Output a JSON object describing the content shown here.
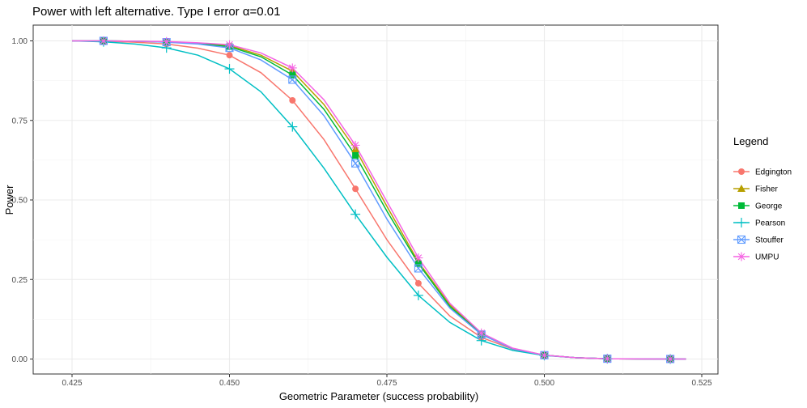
{
  "chart_data": {
    "type": "line",
    "title": "Power with left alternative. Type I error α=0.01",
    "xlabel": "Geometric Parameter (success probability)",
    "ylabel": "Power",
    "xlim": [
      0.425,
      0.525
    ],
    "ylim": [
      0.0,
      1.0
    ],
    "x_ticks": [
      0.425,
      0.45,
      0.475,
      0.5,
      0.525
    ],
    "x_tick_labels": [
      "0.425",
      "0.450",
      "0.475",
      "0.500",
      "0.525"
    ],
    "y_ticks": [
      0.0,
      0.25,
      0.5,
      0.75,
      1.0
    ],
    "y_tick_labels": [
      "0.00",
      "0.25",
      "0.50",
      "0.75",
      "1.00"
    ],
    "grid": true,
    "legend": {
      "title": "Legend",
      "position": "right"
    },
    "series": [
      {
        "name": "Edgington",
        "color": "#f8766d",
        "marker": "circle",
        "line_x": [
          0.425,
          0.43,
          0.435,
          0.44,
          0.445,
          0.45,
          0.455,
          0.46,
          0.465,
          0.47,
          0.475,
          0.48,
          0.485,
          0.49,
          0.495,
          0.5,
          0.505,
          0.51,
          0.515,
          0.52,
          0.5225
        ],
        "line_y": [
          1.0,
          0.999,
          0.996,
          0.99,
          0.977,
          0.955,
          0.9,
          0.813,
          0.69,
          0.535,
          0.375,
          0.238,
          0.135,
          0.068,
          0.031,
          0.012,
          0.004,
          0.001,
          0.0003,
          0.0001,
          0.0
        ],
        "points_x": [
          0.43,
          0.44,
          0.45,
          0.46,
          0.47,
          0.48,
          0.49,
          0.5,
          0.51,
          0.52
        ],
        "points_y": [
          0.999,
          0.99,
          0.955,
          0.813,
          0.535,
          0.238,
          0.068,
          0.012,
          0.001,
          0.0001
        ]
      },
      {
        "name": "Fisher",
        "color": "#b79f00",
        "marker": "triangle",
        "line_x": [
          0.425,
          0.43,
          0.435,
          0.44,
          0.445,
          0.45,
          0.455,
          0.46,
          0.465,
          0.47,
          0.475,
          0.48,
          0.485,
          0.49,
          0.495,
          0.5,
          0.505,
          0.51,
          0.515,
          0.52,
          0.5225
        ],
        "line_y": [
          1.0,
          1.0,
          0.999,
          0.997,
          0.993,
          0.985,
          0.955,
          0.905,
          0.8,
          0.66,
          0.48,
          0.305,
          0.17,
          0.08,
          0.033,
          0.012,
          0.004,
          0.001,
          0.0003,
          0.0001,
          0.0
        ],
        "points_x": [
          0.43,
          0.44,
          0.45,
          0.46,
          0.47,
          0.48,
          0.49,
          0.5,
          0.51,
          0.52
        ],
        "points_y": [
          1.0,
          0.997,
          0.985,
          0.905,
          0.66,
          0.305,
          0.08,
          0.012,
          0.001,
          0.0001
        ]
      },
      {
        "name": "George",
        "color": "#00ba38",
        "marker": "square",
        "line_x": [
          0.425,
          0.43,
          0.435,
          0.44,
          0.445,
          0.45,
          0.455,
          0.46,
          0.465,
          0.47,
          0.475,
          0.48,
          0.485,
          0.49,
          0.495,
          0.5,
          0.505,
          0.51,
          0.515,
          0.52,
          0.5225
        ],
        "line_y": [
          1.0,
          1.0,
          0.999,
          0.997,
          0.992,
          0.982,
          0.95,
          0.893,
          0.785,
          0.64,
          0.465,
          0.3,
          0.165,
          0.078,
          0.032,
          0.012,
          0.004,
          0.001,
          0.0003,
          0.0001,
          0.0
        ],
        "points_x": [
          0.43,
          0.44,
          0.45,
          0.46,
          0.47,
          0.48,
          0.49,
          0.5,
          0.51,
          0.52
        ],
        "points_y": [
          1.0,
          0.997,
          0.982,
          0.893,
          0.64,
          0.3,
          0.078,
          0.012,
          0.001,
          0.0001
        ]
      },
      {
        "name": "Pearson",
        "color": "#00bfc4",
        "marker": "plus",
        "line_x": [
          0.425,
          0.43,
          0.435,
          0.44,
          0.445,
          0.45,
          0.455,
          0.46,
          0.465,
          0.47,
          0.475,
          0.48,
          0.485,
          0.49,
          0.495,
          0.5,
          0.505,
          0.51,
          0.515,
          0.52,
          0.5225
        ],
        "line_y": [
          1.0,
          0.997,
          0.99,
          0.978,
          0.955,
          0.912,
          0.84,
          0.73,
          0.6,
          0.455,
          0.32,
          0.2,
          0.115,
          0.058,
          0.027,
          0.011,
          0.004,
          0.001,
          0.0003,
          0.0001,
          0.0
        ],
        "points_x": [
          0.43,
          0.44,
          0.45,
          0.46,
          0.47,
          0.48,
          0.49,
          0.5,
          0.51,
          0.52
        ],
        "points_y": [
          0.997,
          0.978,
          0.912,
          0.73,
          0.455,
          0.2,
          0.058,
          0.011,
          0.001,
          0.0001
        ]
      },
      {
        "name": "Stouffer",
        "color": "#619cff",
        "marker": "square-cross",
        "line_x": [
          0.425,
          0.43,
          0.435,
          0.44,
          0.445,
          0.45,
          0.455,
          0.46,
          0.465,
          0.47,
          0.475,
          0.48,
          0.485,
          0.49,
          0.495,
          0.5,
          0.505,
          0.51,
          0.515,
          0.52,
          0.5225
        ],
        "line_y": [
          1.0,
          1.0,
          0.999,
          0.996,
          0.99,
          0.978,
          0.94,
          0.878,
          0.765,
          0.615,
          0.44,
          0.285,
          0.16,
          0.077,
          0.032,
          0.012,
          0.004,
          0.001,
          0.0003,
          0.0001,
          0.0
        ],
        "points_x": [
          0.43,
          0.44,
          0.45,
          0.46,
          0.47,
          0.48,
          0.49,
          0.5,
          0.51,
          0.52
        ],
        "points_y": [
          1.0,
          0.996,
          0.978,
          0.878,
          0.615,
          0.285,
          0.077,
          0.012,
          0.001,
          0.0001
        ]
      },
      {
        "name": "UMPU",
        "color": "#f564e3",
        "marker": "asterisk",
        "line_x": [
          0.425,
          0.43,
          0.435,
          0.44,
          0.445,
          0.45,
          0.455,
          0.46,
          0.465,
          0.47,
          0.475,
          0.48,
          0.485,
          0.49,
          0.495,
          0.5,
          0.505,
          0.51,
          0.515,
          0.52,
          0.5225
        ],
        "line_y": [
          1.0,
          1.0,
          0.999,
          0.998,
          0.994,
          0.988,
          0.962,
          0.915,
          0.815,
          0.672,
          0.495,
          0.318,
          0.175,
          0.082,
          0.034,
          0.012,
          0.004,
          0.001,
          0.0003,
          0.0001,
          0.0
        ],
        "points_x": [
          0.43,
          0.44,
          0.45,
          0.46,
          0.47,
          0.48,
          0.49,
          0.5,
          0.51,
          0.52
        ],
        "points_y": [
          1.0,
          0.998,
          0.988,
          0.915,
          0.672,
          0.318,
          0.082,
          0.012,
          0.001,
          0.0001
        ]
      }
    ]
  }
}
